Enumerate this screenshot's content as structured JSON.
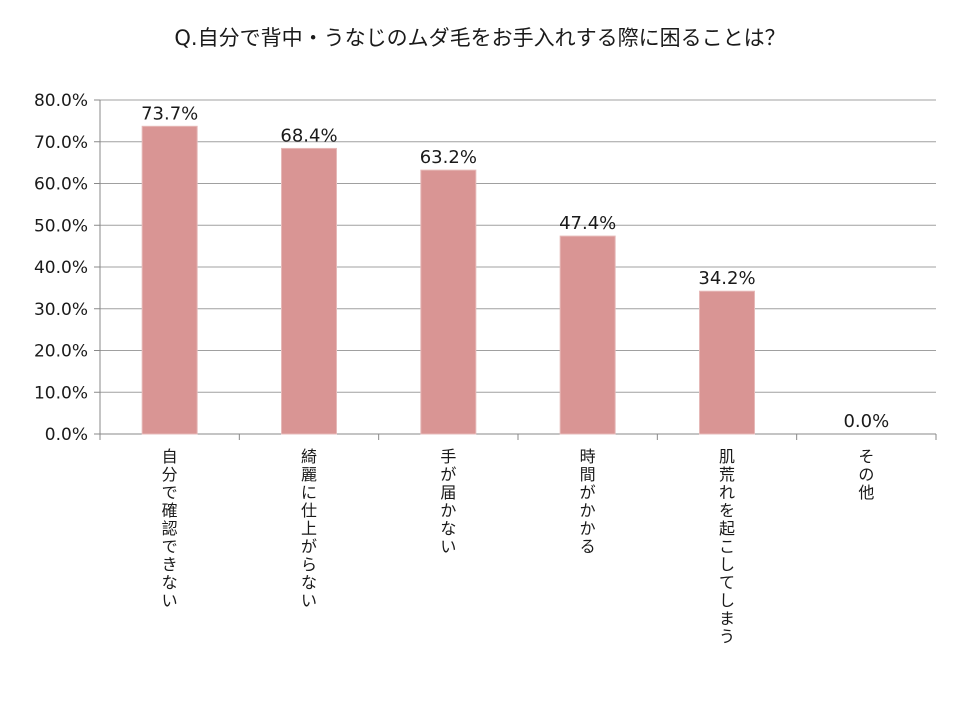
{
  "chart_data": {
    "type": "bar",
    "title": "Q.自分で背中・うなじのムダ毛をお手入れする際に困ることは？",
    "xlabel": "",
    "ylabel": "",
    "ylim": [
      0,
      80
    ],
    "y_ticks": [
      "0.0%",
      "10.0%",
      "20.0%",
      "30.0%",
      "40.0%",
      "50.0%",
      "60.0%",
      "70.0%",
      "80.0%"
    ],
    "categories": [
      "自分で確認できない",
      "綺麗に仕上がらない",
      "手が届かない",
      "時間がかかる",
      "肌荒れを起こしてしまう",
      "その他"
    ],
    "values": [
      73.7,
      68.4,
      63.2,
      47.4,
      34.2,
      0.0
    ],
    "value_labels": [
      "73.7%",
      "68.4%",
      "63.2%",
      "47.4%",
      "34.2%",
      "0.0%"
    ],
    "grid": true,
    "legend": "none",
    "bar_color": "#d99594",
    "bar_edge_color": "#e6b9b8",
    "grid_color": "#a0a0a0"
  }
}
